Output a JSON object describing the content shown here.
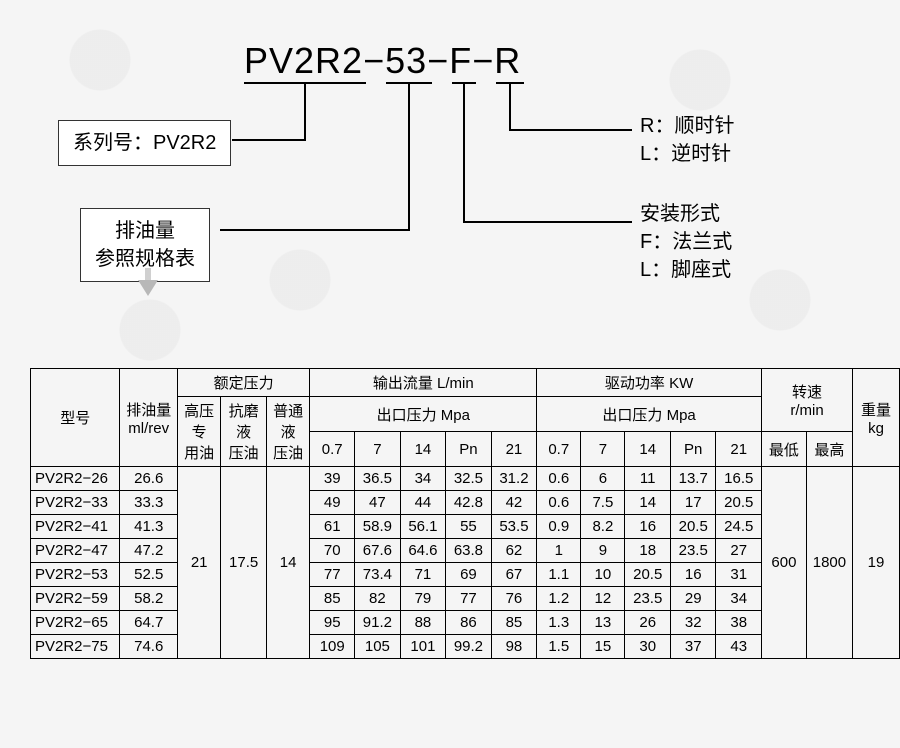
{
  "code": {
    "seg1": "PV2R2",
    "dash": "−",
    "seg2": "53",
    "seg3": "F",
    "seg4": "R"
  },
  "leftBoxes": {
    "series": "系列号：PV2R2",
    "displacement_l1": "排油量",
    "displacement_l2": "参照规格表"
  },
  "rightDesc": {
    "rotation_l1": "R：顺时针",
    "rotation_l2": "L：逆时针",
    "mount_l1": "安装形式",
    "mount_l2": "F：法兰式",
    "mount_l3": "L：脚座式"
  },
  "table": {
    "headers": {
      "model": "型号",
      "disp": "排油量",
      "disp_unit": "ml/rev",
      "rated": "额定压力",
      "p_hp": "高压",
      "p_hp2": "专",
      "p_hp3": "用油",
      "p_aw": "抗磨",
      "p_aw2": "液",
      "p_aw3": "压油",
      "p_gen": "普通",
      "p_gen2": "液",
      "p_gen3": "压油",
      "outflow": "输出流量 L/min",
      "outlet_p": "出口压力 Mpa",
      "drive": "驱动功率 KW",
      "speed": "转速",
      "speed_unit": "r/min",
      "speed_lo": "最低",
      "speed_hi": "最高",
      "weight": "重量",
      "weight_unit": "kg",
      "c07": "0.7",
      "c7": "7",
      "c14": "14",
      "cpn": "Pn",
      "c21": "21"
    },
    "ratedVals": {
      "hp": "21",
      "aw": "17.5",
      "gen": "14"
    },
    "speedVals": {
      "lo": "600",
      "hi": "1800"
    },
    "weightVal": "19",
    "rows": [
      {
        "m": "PV2R2−26",
        "d": "26.6",
        "f": [
          "39",
          "36.5",
          "34",
          "32.5",
          "31.2"
        ],
        "p": [
          "0.6",
          "6",
          "11",
          "13.7",
          "16.5"
        ]
      },
      {
        "m": "PV2R2−33",
        "d": "33.3",
        "f": [
          "49",
          "47",
          "44",
          "42.8",
          "42"
        ],
        "p": [
          "0.6",
          "7.5",
          "14",
          "17",
          "20.5"
        ]
      },
      {
        "m": "PV2R2−41",
        "d": "41.3",
        "f": [
          "61",
          "58.9",
          "56.1",
          "55",
          "53.5"
        ],
        "p": [
          "0.9",
          "8.2",
          "16",
          "20.5",
          "24.5"
        ]
      },
      {
        "m": "PV2R2−47",
        "d": "47.2",
        "f": [
          "70",
          "67.6",
          "64.6",
          "63.8",
          "62"
        ],
        "p": [
          "1",
          "9",
          "18",
          "23.5",
          "27"
        ]
      },
      {
        "m": "PV2R2−53",
        "d": "52.5",
        "f": [
          "77",
          "73.4",
          "71",
          "69",
          "67"
        ],
        "p": [
          "1.1",
          "10",
          "20.5",
          "16",
          "31"
        ]
      },
      {
        "m": "PV2R2−59",
        "d": "58.2",
        "f": [
          "85",
          "82",
          "79",
          "77",
          "76"
        ],
        "p": [
          "1.2",
          "12",
          "23.5",
          "29",
          "34"
        ]
      },
      {
        "m": "PV2R2−65",
        "d": "64.7",
        "f": [
          "95",
          "91.2",
          "88",
          "86",
          "85"
        ],
        "p": [
          "1.3",
          "13",
          "26",
          "32",
          "38"
        ]
      },
      {
        "m": "PV2R2−75",
        "d": "74.6",
        "f": [
          "109",
          "105",
          "101",
          "99.2",
          "98"
        ],
        "p": [
          "1.5",
          "15",
          "30",
          "37",
          "43"
        ]
      }
    ]
  },
  "style": {
    "line_color": "#000000",
    "box_border": "#333333",
    "bg": "#f5f5f5",
    "arrow": "#c0c0c0"
  }
}
